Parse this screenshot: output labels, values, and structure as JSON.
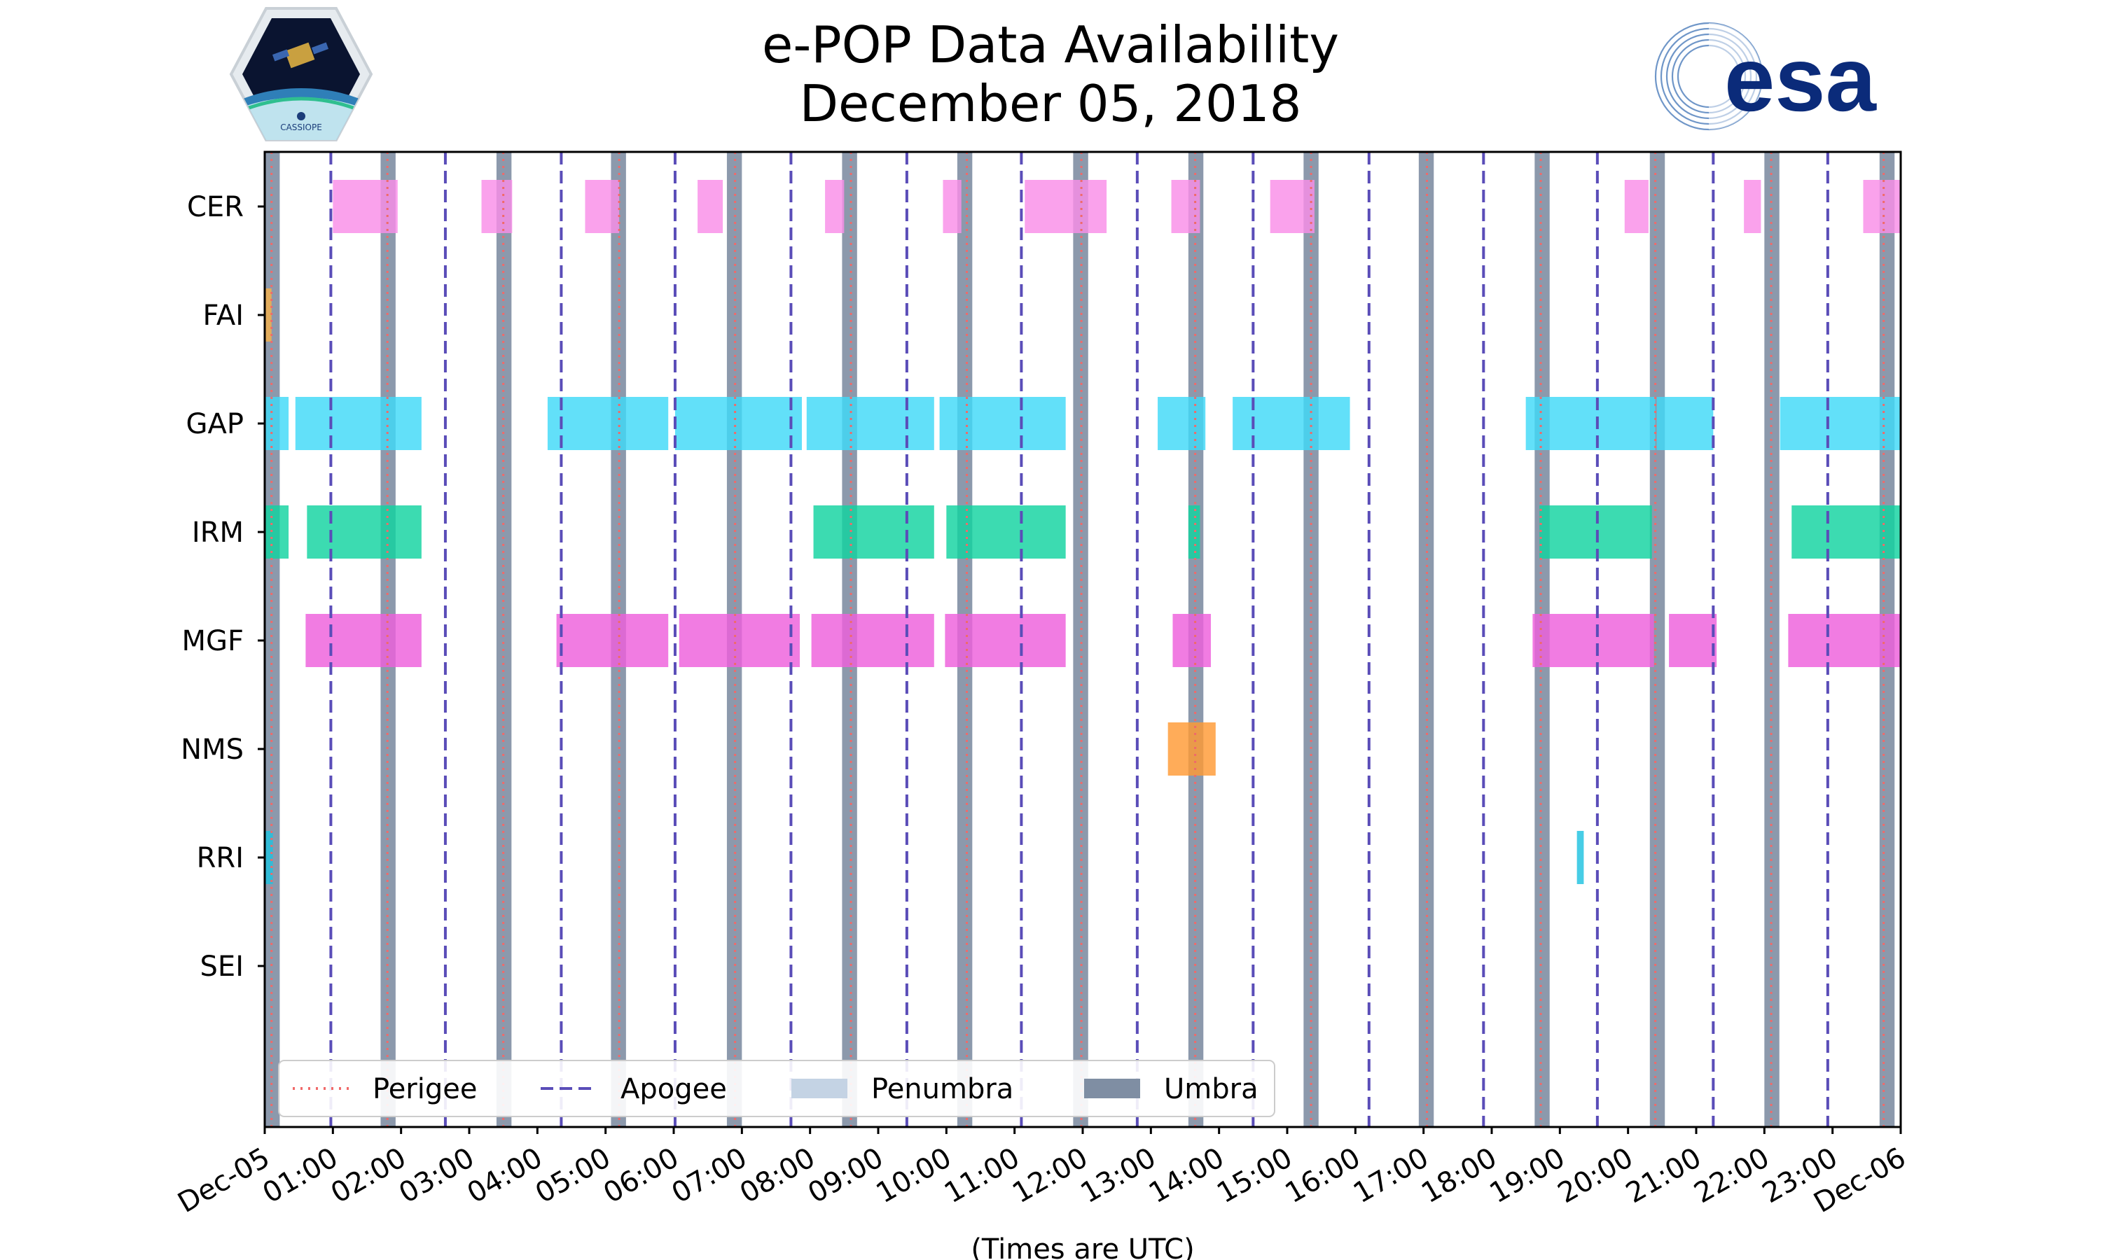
{
  "title_line1": "e-POP Data Availability",
  "title_line2": "December 05, 2018",
  "logos": {
    "left": "CASSIOPE",
    "right": "esa"
  },
  "colors": {
    "CER": "#f98ee8",
    "FAI": "#f5b04a",
    "GAP": "#3fd9f8",
    "IRM": "#11d3a0",
    "MGF": "#ee5fdc",
    "NMS": "#ff9a35",
    "RRI": "#1ec2e0",
    "perigee": "#f06a6a",
    "apogee": "#5a4db8",
    "umbra": "#7f8ea3",
    "penumbra": "#c4d3e4"
  },
  "chart_data": {
    "type": "timeline",
    "title": "e-POP Data Availability December 05, 2018",
    "xlabel": "(Times are UTC)",
    "xlim_hours": [
      0,
      24
    ],
    "x_tick_labels": [
      "Dec-05",
      "01:00",
      "02:00",
      "03:00",
      "04:00",
      "05:00",
      "06:00",
      "07:00",
      "08:00",
      "09:00",
      "10:00",
      "11:00",
      "12:00",
      "13:00",
      "14:00",
      "15:00",
      "16:00",
      "17:00",
      "18:00",
      "19:00",
      "20:00",
      "21:00",
      "22:00",
      "23:00",
      "Dec-06"
    ],
    "instruments": [
      "CER",
      "FAI",
      "GAP",
      "IRM",
      "MGF",
      "NMS",
      "RRI",
      "SEI"
    ],
    "legend": [
      {
        "label": "Perigee",
        "style": "dotted"
      },
      {
        "label": "Apogee",
        "style": "dashed"
      },
      {
        "label": "Penumbra",
        "style": "patch"
      },
      {
        "label": "Umbra",
        "style": "patch"
      }
    ],
    "legend_position": "lower-left",
    "perigee_hours": [
      0.1,
      1.8,
      3.5,
      5.2,
      6.9,
      8.6,
      10.3,
      11.98,
      13.65,
      15.35,
      17.05,
      18.72,
      20.4,
      22.1,
      23.75
    ],
    "apogee_hours": [
      0.97,
      2.65,
      4.35,
      6.02,
      7.72,
      9.42,
      11.1,
      12.8,
      14.5,
      16.2,
      17.88,
      19.55,
      21.25,
      22.93
    ],
    "umbra_hours": [
      [
        0.0,
        0.22
      ],
      [
        1.7,
        1.92
      ],
      [
        3.4,
        3.62
      ],
      [
        5.08,
        5.3
      ],
      [
        6.78,
        7.0
      ],
      [
        8.47,
        8.69
      ],
      [
        10.16,
        10.38
      ],
      [
        11.86,
        12.08
      ],
      [
        13.55,
        13.77
      ],
      [
        15.24,
        15.46
      ],
      [
        16.93,
        17.15
      ],
      [
        18.63,
        18.85
      ],
      [
        20.32,
        20.54
      ],
      [
        22.0,
        22.22
      ],
      [
        23.69,
        23.91
      ]
    ],
    "segments": {
      "CER": [
        [
          1.0,
          1.95
        ],
        [
          3.18,
          3.63
        ],
        [
          4.7,
          5.2
        ],
        [
          6.35,
          6.72
        ],
        [
          8.22,
          8.5
        ],
        [
          9.95,
          10.22
        ],
        [
          11.15,
          12.35
        ],
        [
          13.3,
          13.72
        ],
        [
          14.75,
          15.4
        ],
        [
          19.95,
          20.3
        ],
        [
          21.7,
          21.95
        ],
        [
          23.45,
          24.0
        ]
      ],
      "FAI": [
        [
          0.0,
          0.1
        ]
      ],
      "GAP": [
        [
          0.0,
          0.35
        ],
        [
          0.45,
          2.3
        ],
        [
          4.15,
          5.92
        ],
        [
          6.02,
          7.88
        ],
        [
          7.95,
          9.82
        ],
        [
          9.9,
          11.75
        ],
        [
          13.1,
          13.8
        ],
        [
          14.2,
          15.92
        ],
        [
          18.5,
          20.4
        ],
        [
          20.42,
          21.25
        ],
        [
          22.23,
          24.0
        ]
      ],
      "IRM": [
        [
          0.0,
          0.35
        ],
        [
          0.62,
          2.3
        ],
        [
          8.05,
          9.82
        ],
        [
          10.0,
          11.75
        ],
        [
          13.55,
          13.72
        ],
        [
          18.7,
          20.35
        ],
        [
          22.4,
          24.0
        ]
      ],
      "MGF": [
        [
          0.6,
          2.3
        ],
        [
          4.28,
          5.92
        ],
        [
          6.08,
          7.85
        ],
        [
          8.02,
          9.82
        ],
        [
          9.98,
          11.75
        ],
        [
          13.32,
          13.88
        ],
        [
          18.6,
          20.38
        ],
        [
          20.6,
          21.3
        ],
        [
          22.35,
          24.0
        ]
      ],
      "NMS": [
        [
          13.25,
          13.95
        ]
      ],
      "RRI": [
        [
          0.0,
          0.12
        ],
        [
          19.25,
          19.35
        ]
      ],
      "SEI": []
    }
  }
}
